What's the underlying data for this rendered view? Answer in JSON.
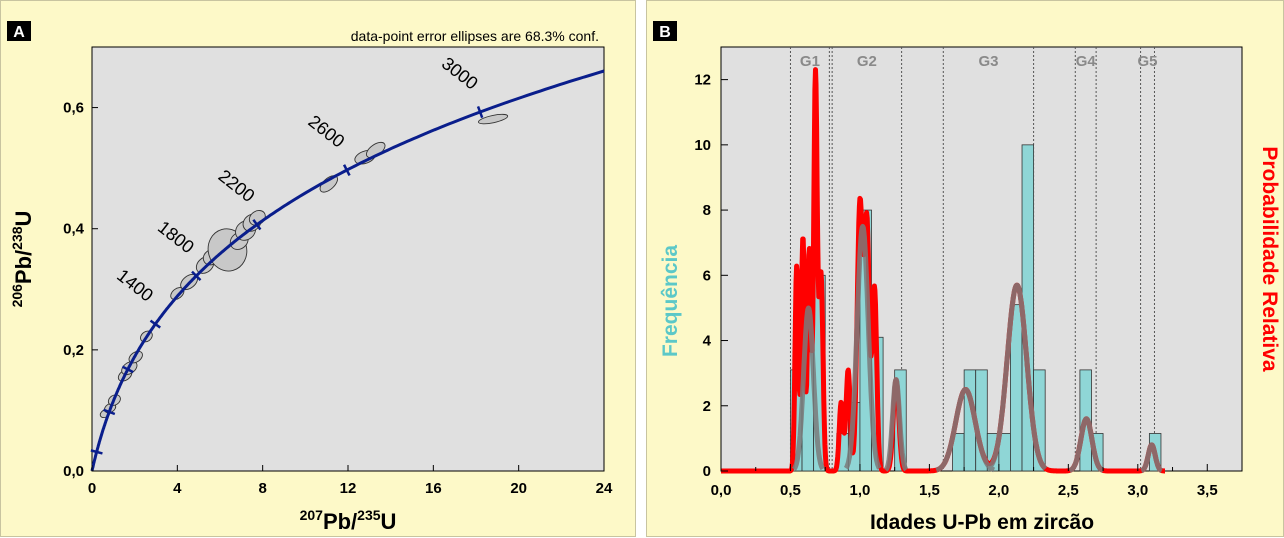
{
  "chart_data": [
    {
      "type": "scatter",
      "panel_label": "A",
      "annotation": "data-point error ellipses are 68.3% conf.",
      "xlabel": {
        "sup": "207",
        "base": "Pb/",
        "sup2": "235",
        "base2": "U"
      },
      "ylabel": {
        "sup": "206",
        "base": "Pb/",
        "sup2": "238",
        "base2": "U"
      },
      "xlim": [
        0,
        24
      ],
      "ylim": [
        0,
        0.7
      ],
      "x_ticks": [
        0,
        4,
        8,
        12,
        16,
        20,
        24
      ],
      "y_ticks": [
        0.0,
        0.2,
        0.4,
        0.6
      ],
      "y_tick_labels": [
        "0,0",
        "0,2",
        "0,4",
        "0,6"
      ],
      "grid": false,
      "background": "#e0e0e0",
      "concordia_color": "#0a1e8c",
      "concordia_age_labels": [
        {
          "age": 1400,
          "label": "1400"
        },
        {
          "age": 1800,
          "label": "1800"
        },
        {
          "age": 2200,
          "label": "2200"
        },
        {
          "age": 2600,
          "label": "2600"
        },
        {
          "age": 3000,
          "label": "3000"
        }
      ],
      "concordia_tick_ages_ma": [
        200,
        600,
        1000,
        1400,
        1800,
        2200,
        2600,
        3000
      ],
      "ellipses": [
        {
          "x": 0.62,
          "y": 0.095,
          "rx": 0.25,
          "ry": 0.006,
          "rot": -30
        },
        {
          "x": 0.85,
          "y": 0.104,
          "rx": 0.28,
          "ry": 0.007,
          "rot": -30
        },
        {
          "x": 1.05,
          "y": 0.117,
          "rx": 0.3,
          "ry": 0.008,
          "rot": -32
        },
        {
          "x": 1.55,
          "y": 0.158,
          "rx": 0.35,
          "ry": 0.008,
          "rot": -35
        },
        {
          "x": 1.75,
          "y": 0.17,
          "rx": 0.4,
          "ry": 0.009,
          "rot": -35
        },
        {
          "x": 2.05,
          "y": 0.188,
          "rx": 0.35,
          "ry": 0.008,
          "rot": -35
        },
        {
          "x": 2.55,
          "y": 0.222,
          "rx": 0.3,
          "ry": 0.008,
          "rot": -36
        },
        {
          "x": 4.0,
          "y": 0.293,
          "rx": 0.35,
          "ry": 0.008,
          "rot": -38
        },
        {
          "x": 4.55,
          "y": 0.312,
          "rx": 0.45,
          "ry": 0.01,
          "rot": -38
        },
        {
          "x": 5.3,
          "y": 0.34,
          "rx": 0.45,
          "ry": 0.012,
          "rot": -40
        },
        {
          "x": 5.6,
          "y": 0.353,
          "rx": 0.4,
          "ry": 0.012,
          "rot": -35
        },
        {
          "x": 6.35,
          "y": 0.365,
          "rx": 0.9,
          "ry": 0.035,
          "rot": -15
        },
        {
          "x": 6.9,
          "y": 0.38,
          "rx": 0.45,
          "ry": 0.013,
          "rot": -40
        },
        {
          "x": 7.2,
          "y": 0.397,
          "rx": 0.5,
          "ry": 0.015,
          "rot": -40
        },
        {
          "x": 7.5,
          "y": 0.41,
          "rx": 0.45,
          "ry": 0.013,
          "rot": -40
        },
        {
          "x": 7.75,
          "y": 0.418,
          "rx": 0.4,
          "ry": 0.011,
          "rot": -35
        },
        {
          "x": 11.1,
          "y": 0.474,
          "rx": 0.5,
          "ry": 0.009,
          "rot": -42
        },
        {
          "x": 12.8,
          "y": 0.518,
          "rx": 0.5,
          "ry": 0.01,
          "rot": -20
        },
        {
          "x": 13.3,
          "y": 0.53,
          "rx": 0.5,
          "ry": 0.009,
          "rot": -35
        },
        {
          "x": 18.8,
          "y": 0.581,
          "rx": 0.7,
          "ry": 0.006,
          "rot": -12
        }
      ]
    },
    {
      "type": "bar",
      "panel_label": "B",
      "xlabel": "Idades U-Pb em zircão",
      "ylabel_left": "Frequência",
      "ylabel_right": "Probabilidade Relativa",
      "xlim": [
        0,
        3.75
      ],
      "ylim": [
        0,
        13
      ],
      "x_ticks": [
        0.0,
        0.5,
        1.0,
        1.5,
        2.0,
        2.5,
        3.0,
        3.5
      ],
      "x_tick_labels": [
        "0,0",
        "0,5",
        "1,0",
        "1,5",
        "2,0",
        "2,5",
        "3,0",
        "3,5"
      ],
      "y_ticks": [
        0,
        2,
        4,
        6,
        8,
        10,
        12
      ],
      "bar_color": "#8fd6d6",
      "curve_red_color": "#ff0000",
      "curve_gray_color": "#7a7a7a",
      "background": "#e0e0e0",
      "histogram": [
        {
          "from": 0.5,
          "to": 0.5833,
          "value": 3.1
        },
        {
          "from": 0.5833,
          "to": 0.6667,
          "value": 5.1
        },
        {
          "from": 0.6667,
          "to": 0.75,
          "value": 6.0
        },
        {
          "from": 0.8333,
          "to": 0.9167,
          "value": 1.15
        },
        {
          "from": 0.9167,
          "to": 1.0,
          "value": 2.1
        },
        {
          "from": 1.0,
          "to": 1.0833,
          "value": 8.0
        },
        {
          "from": 1.0833,
          "to": 1.1667,
          "value": 4.1
        },
        {
          "from": 1.25,
          "to": 1.3333,
          "value": 3.1
        },
        {
          "from": 1.6667,
          "to": 1.75,
          "value": 1.15
        },
        {
          "from": 1.75,
          "to": 1.8333,
          "value": 3.1
        },
        {
          "from": 1.8333,
          "to": 1.9167,
          "value": 3.1
        },
        {
          "from": 1.9167,
          "to": 2.0,
          "value": 1.15
        },
        {
          "from": 2.0,
          "to": 2.0833,
          "value": 1.15
        },
        {
          "from": 2.0833,
          "to": 2.1667,
          "value": 5.1
        },
        {
          "from": 2.1667,
          "to": 2.25,
          "value": 10.0
        },
        {
          "from": 2.25,
          "to": 2.3333,
          "value": 3.1
        },
        {
          "from": 2.5833,
          "to": 2.6667,
          "value": 3.1
        },
        {
          "from": 2.6667,
          "to": 2.75,
          "value": 1.15
        },
        {
          "from": 3.0833,
          "to": 3.1667,
          "value": 1.15
        }
      ],
      "red_peaks": [
        {
          "mu": 0.545,
          "sigma": 0.012,
          "amp": 6.3
        },
        {
          "mu": 0.59,
          "sigma": 0.012,
          "amp": 7.2
        },
        {
          "mu": 0.635,
          "sigma": 0.012,
          "amp": 6.8
        },
        {
          "mu": 0.68,
          "sigma": 0.013,
          "amp": 12.2
        },
        {
          "mu": 0.72,
          "sigma": 0.014,
          "amp": 6.0
        },
        {
          "mu": 0.865,
          "sigma": 0.014,
          "amp": 2.1
        },
        {
          "mu": 0.915,
          "sigma": 0.015,
          "amp": 3.1
        },
        {
          "mu": 1.0,
          "sigma": 0.02,
          "amp": 8.2
        },
        {
          "mu": 1.05,
          "sigma": 0.018,
          "amp": 7.5
        },
        {
          "mu": 1.105,
          "sigma": 0.016,
          "amp": 5.6
        },
        {
          "mu": 1.26,
          "sigma": 0.02,
          "amp": 2.8
        },
        {
          "mu": 1.76,
          "sigma": 0.07,
          "amp": 2.5
        },
        {
          "mu": 2.13,
          "sigma": 0.07,
          "amp": 5.7
        },
        {
          "mu": 2.63,
          "sigma": 0.04,
          "amp": 1.6
        },
        {
          "mu": 3.1,
          "sigma": 0.025,
          "amp": 0.8
        }
      ],
      "gray_peaks": [
        {
          "mu": 0.63,
          "sigma": 0.035,
          "amp": 5.0
        },
        {
          "mu": 1.02,
          "sigma": 0.04,
          "amp": 7.5
        },
        {
          "mu": 1.26,
          "sigma": 0.025,
          "amp": 2.8
        },
        {
          "mu": 1.76,
          "sigma": 0.07,
          "amp": 2.5
        },
        {
          "mu": 2.13,
          "sigma": 0.07,
          "amp": 5.7
        },
        {
          "mu": 2.63,
          "sigma": 0.04,
          "amp": 1.6
        },
        {
          "mu": 3.1,
          "sigma": 0.025,
          "amp": 0.8
        }
      ],
      "groups": [
        {
          "label": "G1",
          "from": 0.5,
          "to": 0.78
        },
        {
          "label": "G2",
          "from": 0.8,
          "to": 1.3
        },
        {
          "label": "G3",
          "from": 1.6,
          "to": 2.25
        },
        {
          "label": "G4",
          "from": 2.55,
          "to": 2.7
        },
        {
          "label": "G5",
          "from": 3.02,
          "to": 3.12
        }
      ]
    }
  ]
}
